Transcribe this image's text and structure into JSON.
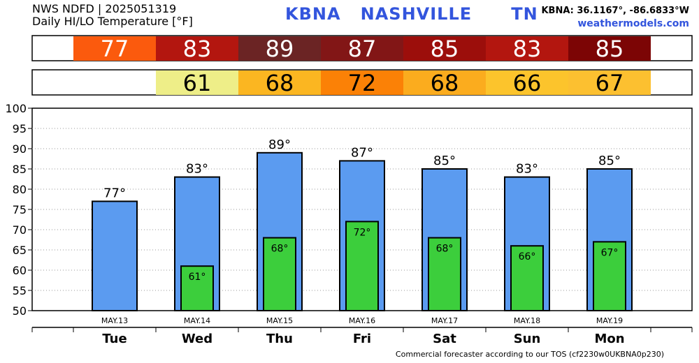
{
  "header": {
    "line1": "NWS NDFD | 2025051319",
    "line2": "Daily HI/LO Temperature [°F]",
    "station_title": "KBNA   NASHVILLE      TN",
    "coords": "KBNA: 36.1167°, -86.6833°W",
    "site": "weathermodels.com"
  },
  "footer": "Commercial forecaster according to our TOS (cf2230w0UKBNA0p230)",
  "colors": {
    "hi_bar": "#5b9bf0",
    "lo_bar": "#3cce3c",
    "hi_row": [
      "#fb5a0d",
      "#b3160f",
      "#6b2424",
      "#821616",
      "#9c0e0b",
      "#b3160f",
      "#7c0505"
    ],
    "lo_row": [
      "#ffffff",
      "#eeee88",
      "#fbb621",
      "#fb8106",
      "#fbac1e",
      "#fcc42c",
      "#fcc030"
    ]
  },
  "chart_data": {
    "type": "bar",
    "categories": [
      "Tue",
      "Wed",
      "Thu",
      "Fri",
      "Sat",
      "Sun",
      "Mon"
    ],
    "dates": [
      "MAY.13",
      "MAY.14",
      "MAY.15",
      "MAY.16",
      "MAY.17",
      "MAY.18",
      "MAY.19"
    ],
    "series": [
      {
        "values": [
          77,
          83,
          89,
          87,
          85,
          83,
          85
        ]
      },
      {
        "values": [
          null,
          61,
          68,
          72,
          68,
          66,
          67
        ]
      }
    ],
    "ylim": [
      50,
      100
    ],
    "yticks": [
      50,
      55,
      60,
      65,
      70,
      75,
      80,
      85,
      90,
      95,
      100
    ],
    "grid": true
  }
}
